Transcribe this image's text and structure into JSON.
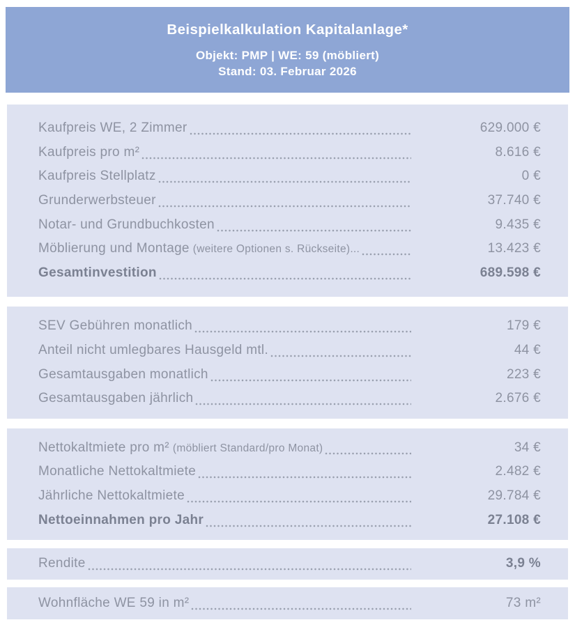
{
  "colors": {
    "page_bg": "#FFFFFF",
    "header_bg": "#8EA6D5",
    "header_text": "#FFFFFF",
    "section_bg": "#DEE2F1",
    "text": "#8E93A2",
    "text_bold": "#7B8192"
  },
  "header": {
    "title": "Beispielkalkulation Kapitalanlage*",
    "object_line": "Objekt: PMP | WE: 59 (möbliert)",
    "date_line": "Stand: 03. Februar 2026"
  },
  "sections": [
    {
      "name": "investment-costs",
      "rows": [
        {
          "label": "Kaufpreis WE, 2 Zimmer",
          "value": "629.000 €",
          "label_bold": false,
          "value_bold": false
        },
        {
          "label": "Kaufpreis pro m²",
          "value": "8.616 €",
          "label_bold": false,
          "value_bold": false
        },
        {
          "label": "Kaufpreis Stellplatz",
          "value": "0 €",
          "label_bold": false,
          "value_bold": false
        },
        {
          "label": "Grunderwerbsteuer",
          "value": "37.740 €",
          "label_bold": false,
          "value_bold": false
        },
        {
          "label": "Notar- und Grundbuchkosten",
          "value": "9.435 €",
          "label_bold": false,
          "value_bold": false
        },
        {
          "label": "Möblierung und Montage",
          "note": "(weitere Optionen s. Rückseite)...",
          "value": "13.423 €",
          "label_bold": false,
          "value_bold": false
        },
        {
          "label": "Gesamtinvestition",
          "value": "689.598 €",
          "label_bold": true,
          "value_bold": true
        }
      ]
    },
    {
      "name": "monthly-expenses",
      "rows": [
        {
          "label": "SEV Gebühren monatlich",
          "value": "179 €",
          "label_bold": false,
          "value_bold": false
        },
        {
          "label": "Anteil nicht umlegbares Hausgeld mtl.",
          "value": "44 €",
          "label_bold": false,
          "value_bold": false
        },
        {
          "label": "Gesamtausgaben monatlich",
          "value": "223 €",
          "label_bold": false,
          "value_bold": false
        },
        {
          "label": "Gesamtausgaben jährlich",
          "value": "2.676 €",
          "label_bold": false,
          "value_bold": false
        }
      ]
    },
    {
      "name": "rental-income",
      "rows": [
        {
          "label": "Nettokaltmiete pro m²",
          "note": "(möbliert Standard/pro Monat)",
          "value": "34 €",
          "label_bold": false,
          "value_bold": false
        },
        {
          "label": "Monatliche Nettokaltmiete",
          "value": "2.482 €",
          "label_bold": false,
          "value_bold": false
        },
        {
          "label": "Jährliche Nettokaltmiete",
          "value": "29.784 €",
          "label_bold": false,
          "value_bold": false
        },
        {
          "label": "Nettoeinnahmen pro Jahr",
          "value": "27.108 €",
          "label_bold": true,
          "value_bold": true
        }
      ]
    },
    {
      "name": "yield",
      "rows": [
        {
          "label": "Rendite",
          "value": "3,9 %",
          "label_bold": false,
          "value_bold": true
        }
      ]
    },
    {
      "name": "living-area",
      "rows": [
        {
          "label": "Wohnfläche WE 59 in m²",
          "value": "73 m²",
          "label_bold": false,
          "value_bold": false
        }
      ]
    }
  ]
}
